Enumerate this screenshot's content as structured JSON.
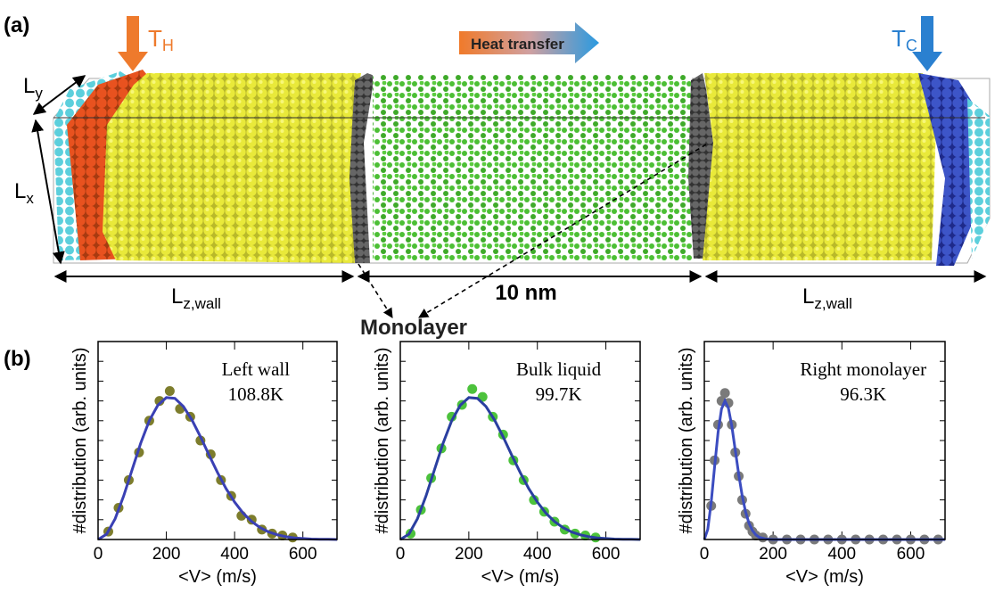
{
  "panel_a": {
    "label": "(a)",
    "t_hot": {
      "symbol": "T",
      "subscript": "H"
    },
    "heat_transfer": "Heat transfer",
    "t_cold": {
      "symbol": "T",
      "subscript": "C"
    },
    "l_y": {
      "symbol": "L",
      "subscript": "y"
    },
    "l_x": {
      "symbol": "L",
      "subscript": "x"
    },
    "l_z_left": {
      "symbol": "L",
      "subscript": "z,wall"
    },
    "liquid_length": "10 nm",
    "l_z_right": {
      "symbol": "L",
      "subscript": "z,wall"
    },
    "monolayer": "Monolayer"
  },
  "panel_b": {
    "label": "(b)"
  },
  "chart_data": [
    {
      "type": "scatter",
      "annotation": [
        "Left wall",
        "108.8K"
      ],
      "xlabel": "<V> (m/s)",
      "ylabel": "#distribution (arb. units)",
      "xlim": [
        0,
        700
      ],
      "xticks": [
        0,
        200,
        400,
        600
      ],
      "ylim": [
        0,
        1
      ],
      "series": [
        {
          "style": "markers",
          "color": "#7d7d2c",
          "x": [
            30,
            60,
            90,
            120,
            150,
            180,
            210,
            240,
            270,
            300,
            330,
            360,
            390,
            420,
            450,
            480,
            510,
            540,
            570
          ],
          "values": [
            0.04,
            0.16,
            0.3,
            0.44,
            0.6,
            0.7,
            0.75,
            0.66,
            0.62,
            0.5,
            0.43,
            0.3,
            0.22,
            0.12,
            0.1,
            0.05,
            0.03,
            0.02,
            0.01
          ]
        },
        {
          "style": "line",
          "color": "#3a40b4",
          "x": [
            0,
            25,
            50,
            75,
            100,
            125,
            150,
            175,
            200,
            225,
            250,
            275,
            300,
            325,
            350,
            375,
            400,
            425,
            450,
            475,
            500,
            525,
            550,
            575,
            600,
            625,
            650,
            675,
            700
          ],
          "values": [
            0,
            0.027,
            0.105,
            0.22,
            0.354,
            0.487,
            0.6,
            0.678,
            0.717,
            0.713,
            0.672,
            0.604,
            0.519,
            0.427,
            0.338,
            0.257,
            0.189,
            0.133,
            0.091,
            0.06,
            0.038,
            0.024,
            0.014,
            0.008,
            0.005,
            0.002,
            0.001,
            0.001,
            0
          ]
        }
      ]
    },
    {
      "type": "scatter",
      "annotation": [
        "Bulk liquid",
        "99.7K"
      ],
      "xlabel": "<V> (m/s)",
      "ylabel": "#distribution (arb. units)",
      "xlim": [
        0,
        700
      ],
      "xticks": [
        0,
        200,
        400,
        600
      ],
      "ylim": [
        0,
        1
      ],
      "series": [
        {
          "style": "markers",
          "color": "#4cc23c",
          "x": [
            30,
            60,
            90,
            120,
            150,
            180,
            210,
            240,
            270,
            300,
            330,
            360,
            390,
            420,
            450,
            480,
            510,
            540,
            570
          ],
          "values": [
            0.03,
            0.15,
            0.31,
            0.46,
            0.62,
            0.68,
            0.76,
            0.72,
            0.62,
            0.53,
            0.4,
            0.3,
            0.2,
            0.14,
            0.09,
            0.05,
            0.03,
            0.02,
            0.01
          ]
        },
        {
          "style": "line",
          "color": "#2a3fa0",
          "x": [
            0,
            25,
            50,
            75,
            100,
            125,
            150,
            175,
            200,
            225,
            250,
            275,
            300,
            325,
            350,
            375,
            400,
            425,
            450,
            475,
            500,
            525,
            550,
            575,
            600,
            625,
            650,
            675,
            700
          ],
          "values": [
            0,
            0.027,
            0.105,
            0.22,
            0.354,
            0.487,
            0.6,
            0.678,
            0.717,
            0.713,
            0.672,
            0.604,
            0.519,
            0.427,
            0.338,
            0.257,
            0.189,
            0.133,
            0.091,
            0.06,
            0.038,
            0.024,
            0.014,
            0.008,
            0.005,
            0.002,
            0.001,
            0.001,
            0
          ]
        }
      ]
    },
    {
      "type": "scatter",
      "annotation": [
        "Right monolayer",
        "96.3K"
      ],
      "xlabel": "<V> (m/s)",
      "ylabel": "#distribution (arb. units)",
      "xlim": [
        0,
        700
      ],
      "xticks": [
        0,
        200,
        400,
        600
      ],
      "ylim": [
        0,
        1
      ],
      "series": [
        {
          "style": "markers",
          "color": "#7a7a7a",
          "x": [
            20,
            30,
            40,
            50,
            60,
            70,
            80,
            90,
            100,
            110,
            120,
            130,
            140,
            150,
            170,
            200,
            240,
            280,
            320,
            360,
            400,
            440,
            480,
            520,
            560,
            600,
            640,
            680
          ],
          "values": [
            0.17,
            0.4,
            0.58,
            0.7,
            0.74,
            0.69,
            0.58,
            0.44,
            0.32,
            0.2,
            0.13,
            0.07,
            0.04,
            0.02,
            0.01,
            0,
            0,
            0,
            0,
            0,
            0,
            0,
            0,
            0,
            0,
            0,
            0,
            0
          ]
        },
        {
          "style": "line",
          "color": "#3b4cc0",
          "x": [
            0,
            10,
            20,
            30,
            40,
            50,
            60,
            70,
            80,
            90,
            100,
            110,
            120,
            130,
            140,
            150,
            160,
            180,
            200,
            300,
            400,
            500,
            600,
            700
          ],
          "values": [
            0,
            0.051,
            0.189,
            0.37,
            0.542,
            0.66,
            0.7,
            0.664,
            0.572,
            0.451,
            0.329,
            0.222,
            0.139,
            0.082,
            0.045,
            0.023,
            0.011,
            0.002,
            0,
            0,
            0,
            0,
            0,
            0
          ]
        }
      ]
    }
  ]
}
